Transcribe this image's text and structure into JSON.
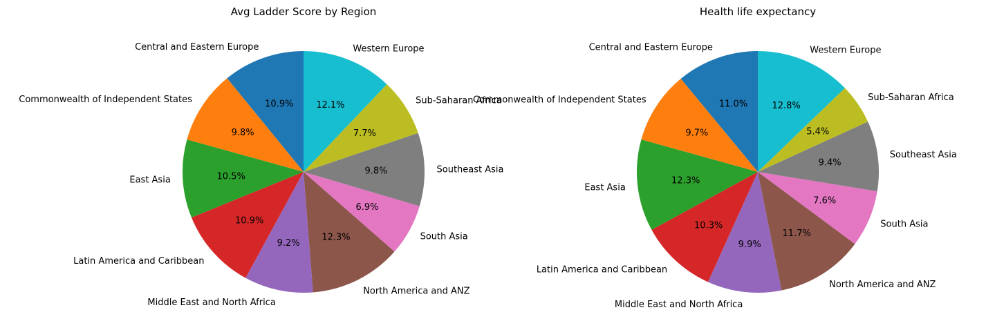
{
  "chart_data": [
    {
      "type": "pie",
      "title": "Avg Ladder Score by Region",
      "categories": [
        "Central and Eastern Europe",
        "Commonwealth of Independent States",
        "East Asia",
        "Latin America and Caribbean",
        "Middle East and North Africa",
        "North America and ANZ",
        "South Asia",
        "Southeast Asia",
        "Sub-Saharan Africa",
        "Western Europe"
      ],
      "values": [
        10.9,
        9.8,
        10.5,
        10.9,
        9.2,
        12.3,
        6.9,
        9.8,
        7.7,
        12.1
      ],
      "value_labels": [
        "10.9%",
        "9.8%",
        "10.5%",
        "10.9%",
        "9.2%",
        "12.3%",
        "6.9%",
        "9.8%",
        "7.7%",
        "12.1%"
      ],
      "start_angle_deg": 90,
      "direction": "counterclockwise"
    },
    {
      "type": "pie",
      "title": "Health life expectancy",
      "categories": [
        "Central and Eastern Europe",
        "Commonwealth of Independent States",
        "East Asia",
        "Latin America and Caribbean",
        "Middle East and North Africa",
        "North America and ANZ",
        "South Asia",
        "Southeast Asia",
        "Sub-Saharan Africa",
        "Western Europe"
      ],
      "values": [
        11.0,
        9.7,
        12.3,
        10.3,
        9.9,
        11.7,
        7.6,
        9.4,
        5.4,
        12.8
      ],
      "value_labels": [
        "11.0%",
        "9.7%",
        "12.3%",
        "10.3%",
        "9.9%",
        "11.7%",
        "7.6%",
        "9.4%",
        "5.4%",
        "12.8%"
      ],
      "start_angle_deg": 90,
      "direction": "counterclockwise"
    }
  ],
  "colors": [
    "#1f77b4",
    "#ff7f0e",
    "#2ca02c",
    "#d62728",
    "#9467bd",
    "#8c564b",
    "#e377c2",
    "#7f7f7f",
    "#bcbd22",
    "#17becf"
  ]
}
